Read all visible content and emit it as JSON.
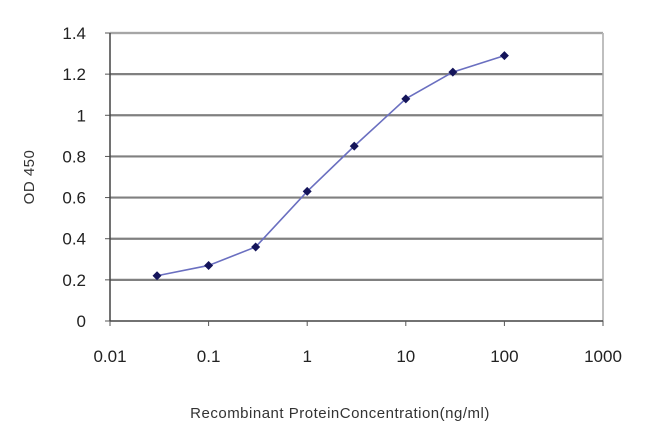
{
  "chart_data": {
    "type": "line",
    "title": "",
    "xlabel": "Recombinant ProteinConcentration(ng/ml)",
    "ylabel": "OD 450",
    "x_scale": "log",
    "xlim": [
      0.01,
      1000
    ],
    "ylim": [
      0,
      1.4
    ],
    "x_ticks": [
      "0.01",
      "0.1",
      "1",
      "10",
      "100",
      "1000"
    ],
    "y_ticks": [
      "0",
      "0.2",
      "0.4",
      "0.6",
      "0.8",
      "1",
      "1.2",
      "1.4"
    ],
    "grid": "horizontal",
    "series": [
      {
        "x": [
          0.03,
          0.1,
          0.3,
          1,
          3,
          10,
          30,
          100
        ],
        "y": [
          0.22,
          0.27,
          0.36,
          0.63,
          0.85,
          1.08,
          1.21,
          1.29
        ]
      }
    ],
    "colors": {
      "line": "#6a6fc0",
      "marker": "#14145a",
      "grid": "#808080"
    }
  }
}
